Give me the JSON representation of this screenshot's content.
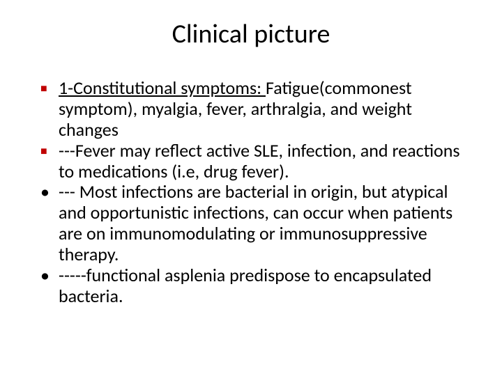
{
  "title": "Clinical picture",
  "bullets": [
    {
      "marker": "square",
      "underlined": "1-Constitutional symptoms: ",
      "rest": "Fatigue(commonest symptom), myalgia, fever, arthralgia, and weight changes"
    },
    {
      "marker": "square",
      "underlined": "",
      "rest": " ---Fever may reflect active SLE, infection, and reactions to medications (i.e, drug fever)."
    },
    {
      "marker": "round",
      "underlined": "",
      "rest": "--- Most infections are bacterial in origin, but atypical and opportunistic infections, can occur when  patients are on immunomodulating or immunosuppressive therapy."
    },
    {
      "marker": "round",
      "underlined": "",
      "rest": "-----functional asplenia predispose to encapsulated bacteria."
    }
  ],
  "colors": {
    "square_bullet": "#c00000",
    "text": "#000000",
    "background": "#ffffff"
  },
  "typography": {
    "title_fontsize": 38,
    "body_fontsize": 26,
    "font_family": "Calibri"
  }
}
